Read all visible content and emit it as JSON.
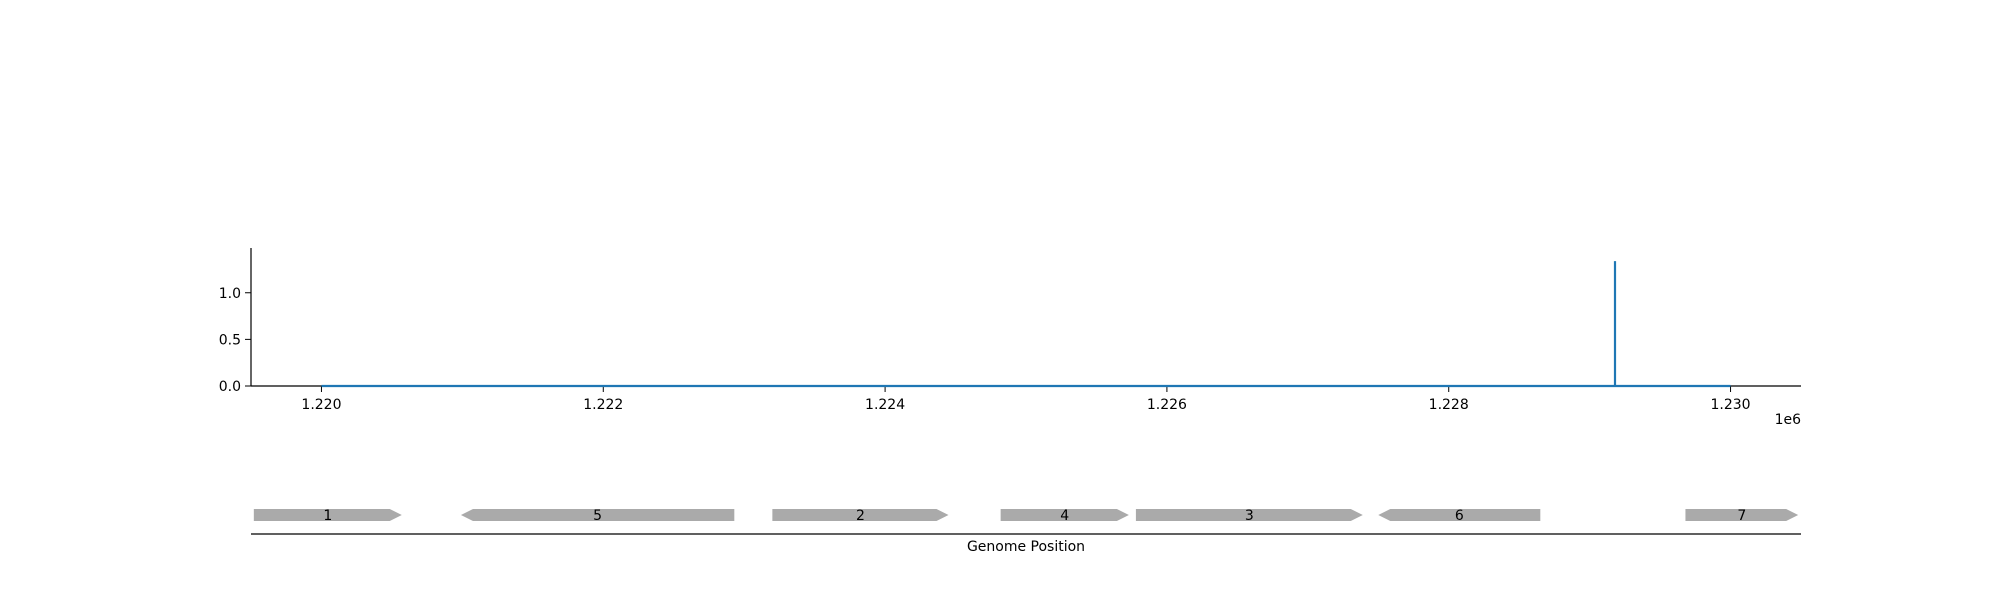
{
  "chart_data": [
    {
      "type": "line",
      "x_offset_label": "1e6",
      "xlim": [
        1219500,
        1230500
      ],
      "ylim": [
        0,
        1.48
      ],
      "x_ticks": [
        1220000,
        1222000,
        1224000,
        1226000,
        1228000,
        1230000
      ],
      "x_tick_labels": [
        "1.220",
        "1.222",
        "1.224",
        "1.226",
        "1.228",
        "1.230"
      ],
      "y_ticks": [
        0.0,
        0.5,
        1.0
      ],
      "y_tick_labels": [
        "0.0",
        "0.5",
        "1.0"
      ],
      "grid": false,
      "series": [
        {
          "color": "#1f77b4",
          "x": [
            1220000,
            1229180,
            1229180,
            1229180,
            1229180,
            1230000
          ],
          "y": [
            0,
            0,
            1.34,
            1.34,
            0,
            0
          ]
        }
      ]
    },
    {
      "type": "gene-track",
      "xlabel": "Genome Position",
      "xlim": [
        1219500,
        1230500
      ],
      "gene_color": "#aaaaaa",
      "genes": [
        {
          "label": "1",
          "start": 1219520,
          "end": 1220570,
          "strand": "+"
        },
        {
          "label": "5",
          "start": 1220990,
          "end": 1222930,
          "strand": "-"
        },
        {
          "label": "2",
          "start": 1223200,
          "end": 1224450,
          "strand": "+"
        },
        {
          "label": "4",
          "start": 1224820,
          "end": 1225730,
          "strand": "+"
        },
        {
          "label": "3",
          "start": 1225780,
          "end": 1227390,
          "strand": "+"
        },
        {
          "label": "6",
          "start": 1227500,
          "end": 1228650,
          "strand": "-"
        },
        {
          "label": "7",
          "start": 1229680,
          "end": 1230480,
          "strand": "+"
        }
      ]
    }
  ]
}
